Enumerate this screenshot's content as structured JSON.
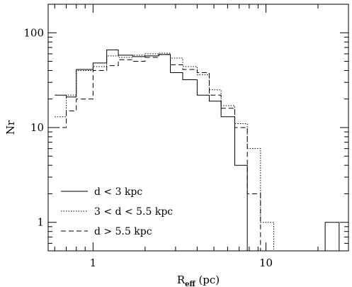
{
  "chart_data": {
    "type": "histogram",
    "xscale": "log",
    "yscale": "log",
    "xlim": [
      0.55,
      30
    ],
    "ylim": [
      0.5,
      200
    ],
    "xlabel": {
      "main": "R",
      "sub": "eff",
      "rest": " (pc)"
    },
    "ylabel": "Nr",
    "xticks": [
      {
        "value": 1,
        "label": "1"
      },
      {
        "value": 10,
        "label": "10"
      }
    ],
    "yticks": [
      {
        "value": 1,
        "label": "1"
      },
      {
        "value": 10,
        "label": "10"
      },
      {
        "value": 100,
        "label": "100"
      }
    ],
    "bin_edges": [
      0.6,
      0.7,
      0.8,
      1.0,
      1.2,
      1.4,
      1.7,
      2.0,
      2.4,
      2.8,
      3.3,
      4.0,
      4.7,
      5.5,
      6.6,
      7.8,
      9.3,
      11.1,
      13.2,
      15.6,
      18.6,
      22.0,
      26.5
    ],
    "series": [
      {
        "name": "d < 3 kpc",
        "dash": "solid",
        "values": [
          22,
          21,
          41,
          48,
          66,
          58,
          56,
          57,
          59,
          38,
          32,
          22,
          19,
          13,
          4,
          0,
          0,
          0,
          0,
          0,
          0,
          1
        ]
      },
      {
        "name": "3 < d < 5.5 kpc",
        "dash": "dotted",
        "values": [
          13,
          22,
          40,
          44,
          57,
          55,
          58,
          60,
          61,
          54,
          44,
          36,
          25,
          17,
          11,
          6,
          1,
          0,
          0,
          0,
          0,
          0
        ]
      },
      {
        "name": "d > 5.5 kpc",
        "dash": "dashed",
        "values": [
          10,
          15,
          20,
          40,
          45,
          52,
          50,
          55,
          59,
          46,
          41,
          38,
          22,
          16,
          10,
          2,
          0,
          0,
          0,
          0,
          0,
          0
        ]
      }
    ],
    "legend_position": "bottom-left",
    "grid": false
  }
}
